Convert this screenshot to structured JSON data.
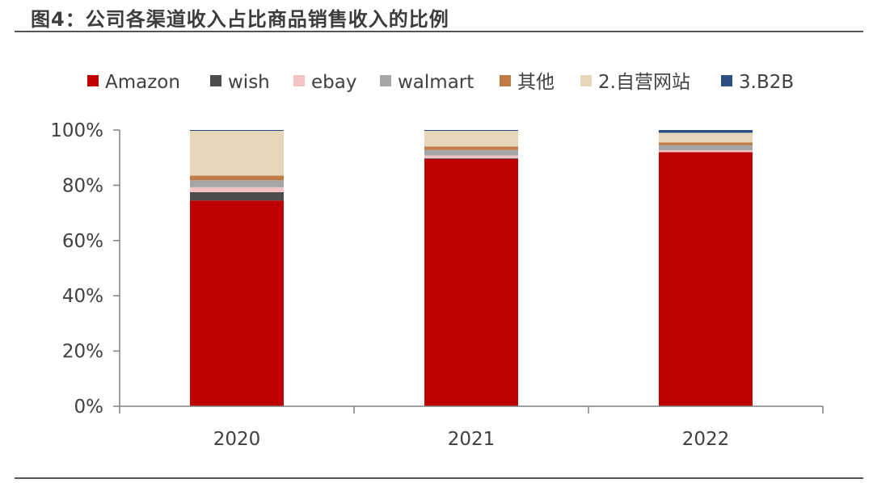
{
  "header": {
    "title": "图4：公司各渠道收入占比商品销售收入的比例"
  },
  "chart_data": {
    "type": "bar",
    "stacked": true,
    "title": "",
    "xlabel": "",
    "ylabel": "",
    "ylim": [
      0,
      100
    ],
    "yticks": [
      "0%",
      "20%",
      "40%",
      "60%",
      "80%",
      "100%"
    ],
    "categories": [
      "2020",
      "2021",
      "2022"
    ],
    "legend_position": "top",
    "series": [
      {
        "name": "Amazon",
        "color": "#c00000",
        "values": [
          74.5,
          89.5,
          92.0
        ]
      },
      {
        "name": "wish",
        "color": "#4d4d4d",
        "values": [
          3.0,
          0.3,
          0.0
        ]
      },
      {
        "name": "ebay",
        "color": "#f2c4c4",
        "values": [
          1.8,
          1.0,
          0.7
        ]
      },
      {
        "name": "walmart",
        "color": "#a6a6a6",
        "values": [
          2.5,
          2.0,
          1.8
        ]
      },
      {
        "name": "其他",
        "color": "#c07a45",
        "values": [
          1.7,
          1.2,
          1.0
        ]
      },
      {
        "name": "2.自营网站",
        "color": "#e6d7b8",
        "values": [
          16.2,
          5.7,
          3.5
        ]
      },
      {
        "name": "3.B2B",
        "color": "#2b4f81",
        "values": [
          0.3,
          0.3,
          1.0
        ]
      }
    ]
  }
}
